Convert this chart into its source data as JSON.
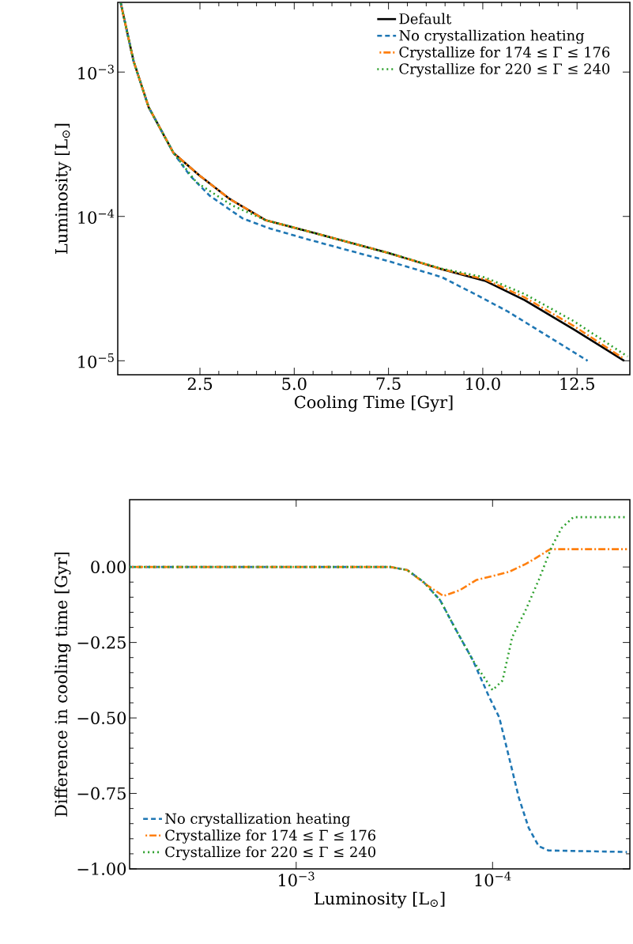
{
  "chart_data": [
    {
      "type": "line",
      "xlabel": "Cooling Time [Gyr]",
      "ylabel": "Luminosity [L$_{⊙}$]",
      "log": "y",
      "legend": "top right",
      "xlim": [
        0.32,
        13.9
      ],
      "ylim": [
        8e-06,
        0.00304
      ],
      "xticks": [
        2.5,
        {
          "value": 5.0,
          "label": "5.0"
        },
        7.5,
        {
          "value": 10.0,
          "label": "10.0"
        },
        12.5
      ],
      "yticks": [
        {
          "value": 0.001,
          "label": "10$^{−3}$"
        },
        {
          "value": 0.0001,
          "label": "10$^{−4}$"
        },
        {
          "value": 1e-05,
          "label": "10$^{−5}$"
        }
      ],
      "series": [
        {
          "name": "Default",
          "color": "#000000",
          "line_style": "solid",
          "x": [
            0.4,
            0.74,
            1.14,
            1.8,
            2.5,
            3.29,
            4.24,
            5.4,
            7.5,
            8.91,
            10.06,
            11.11,
            12.43,
            13.75
          ],
          "values": [
            0.003,
            0.00119,
            0.000571,
            0.000275,
            0.000191,
            0.000132,
            9.42e-05,
            7.85e-05,
            5.58e-05,
            4.31e-05,
            3.58e-05,
            2.63e-05,
            1.64e-05,
            1e-05
          ]
        },
        {
          "name": "No crystallization heating",
          "color": "#1f77b4",
          "line_style": "dashed",
          "x": [
            0.4,
            0.74,
            1.14,
            1.8,
            2.24,
            2.76,
            3.64,
            4.35,
            5.4,
            7.5,
            8.91,
            9.79,
            10.67,
            11.55,
            12.78
          ],
          "values": [
            0.003,
            0.00119,
            0.000571,
            0.000275,
            0.000191,
            0.000139,
            9.66e-05,
            8.26e-05,
            6.89e-05,
            4.9e-05,
            3.8e-05,
            2.9e-05,
            2.19e-05,
            1.58e-05,
            1e-05
          ]
        },
        {
          "name": "Crystallize for 174 ≤ Γ ≤ 176",
          "color": "#ff7f0e",
          "line_style": "dashdot",
          "x": [
            0.4,
            0.74,
            1.14,
            1.8,
            2.5,
            3.29,
            4.24,
            5.4,
            7.5,
            8.91,
            10.06,
            11.11,
            12.43,
            13.75
          ],
          "values": [
            0.003,
            0.00119,
            0.000571,
            0.000275,
            0.000191,
            0.000132,
            9.42e-05,
            7.85e-05,
            5.58e-05,
            4.31e-05,
            3.67e-05,
            2.75e-05,
            1.73e-05,
            1.03e-05
          ]
        },
        {
          "name": "Crystallize for 220 ≤ Γ ≤ 240",
          "color": "#2ca02c",
          "line_style": "dotted",
          "x": [
            0.4,
            0.74,
            1.14,
            1.8,
            2.41,
            3.36,
            4.24,
            5.4,
            7.5,
            8.91,
            10.06,
            11.11,
            12.43,
            13.84
          ],
          "values": [
            0.003,
            0.00119,
            0.000571,
            0.000275,
            0.000172,
            0.000119,
            9.42e-05,
            7.85e-05,
            5.58e-05,
            4.35e-05,
            3.78e-05,
            2.9e-05,
            1.87e-05,
            1.07e-05
          ]
        }
      ]
    },
    {
      "type": "line",
      "xlabel": "Luminosity [L$_{⊙}$]",
      "ylabel": "Difference in cooling time [Gyr]",
      "log": "x",
      "legend": "bottom left",
      "xlim": [
        0.00705,
        2e-05
      ],
      "ylim": [
        -1.0,
        0.223
      ],
      "xticks": [
        {
          "value": 0.001,
          "label": "10$^{−3}$"
        },
        {
          "value": 0.0001,
          "label": "10$^{−4}$"
        }
      ],
      "yticks": [
        {
          "value": 0.0,
          "label": "0.00"
        },
        {
          "value": -0.25,
          "label": "−0.25"
        },
        {
          "value": -0.5,
          "label": "−0.50"
        },
        {
          "value": -0.75,
          "label": "−0.75"
        },
        {
          "value": -1.0,
          "label": "−1.00"
        }
      ],
      "series": [
        {
          "name": "No crystallization heating",
          "color": "#1f77b4",
          "line_style": "dashed",
          "x": [
            0.00705,
            0.001,
            0.000331,
            0.000272,
            0.000225,
            0.000185,
            0.000153,
            0.000126,
            0.000104,
            9.25e-05,
            8.24e-05,
            7.35e-05,
            6.55e-05,
            5.82e-05,
            5.19e-05,
            2.07e-05
          ],
          "values": [
            0.0,
            0.0,
            0.0,
            -0.01,
            -0.049,
            -0.11,
            -0.21,
            -0.309,
            -0.431,
            -0.498,
            -0.631,
            -0.764,
            -0.864,
            -0.925,
            -0.939,
            -0.944
          ]
        },
        {
          "name": "Crystallize for 174 ≤ Γ ≤ 176",
          "color": "#ff7f0e",
          "line_style": "dashdot",
          "x": [
            0.00705,
            0.001,
            0.000331,
            0.000272,
            0.000216,
            0.000178,
            0.000147,
            0.000121,
            0.0001,
            8.24e-05,
            6.79e-05,
            6.05e-05,
            5.09e-05,
            2.07e-05
          ],
          "values": [
            0.0,
            0.0,
            0.0,
            -0.01,
            -0.06,
            -0.096,
            -0.077,
            -0.043,
            -0.03,
            -0.016,
            0.01,
            0.029,
            0.059,
            0.059
          ]
        },
        {
          "name": "Crystallize for 220 ≤ Γ ≤ 240",
          "color": "#2ca02c",
          "line_style": "dotted",
          "x": [
            0.00705,
            0.001,
            0.000331,
            0.000272,
            0.000225,
            0.000185,
            0.000153,
            0.000126,
            0.0001,
            8.9e-05,
            7.94e-05,
            6.79e-05,
            5.82e-05,
            4.99e-05,
            4.45e-05,
            3.88e-05,
            2.07e-05
          ],
          "values": [
            0.0,
            0.0,
            0.0,
            -0.01,
            -0.049,
            -0.11,
            -0.21,
            -0.309,
            -0.408,
            -0.376,
            -0.232,
            -0.143,
            -0.043,
            0.068,
            0.129,
            0.165,
            0.165
          ]
        }
      ]
    }
  ]
}
